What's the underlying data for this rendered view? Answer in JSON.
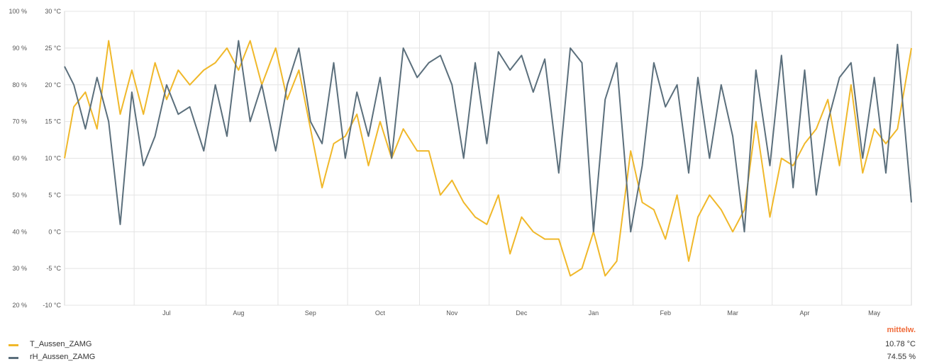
{
  "chart_data": {
    "type": "line",
    "title": "",
    "x_range": [
      "2023-06-01",
      "2024-05-31"
    ],
    "x_tick_labels": [
      "Jul",
      "Aug",
      "Sep",
      "Oct",
      "Nov",
      "Dec",
      "Jan",
      "Feb",
      "Mar",
      "Apr",
      "May"
    ],
    "y_left_ticks": [
      "100 %",
      "90 %",
      "80 %",
      "70 %",
      "60 %",
      "50 %",
      "40 %",
      "30 %",
      "20 %"
    ],
    "y_left_range": [
      20,
      100
    ],
    "y_right_ticks": [
      "30 °C",
      "25 °C",
      "20 °C",
      "15 °C",
      "10 °C",
      "5 °C",
      "0 °C",
      "-5 °C",
      "-10 °C"
    ],
    "y_temp_range": [
      -10,
      30
    ],
    "grid": true,
    "legend_position": "bottom-left",
    "avg_header": "mittelw.",
    "series": [
      {
        "name": "T_Aussen_ZAMG",
        "axis": "temperature",
        "color": "#f0b82a",
        "average": "10.78 °C",
        "x": [
          "2023-06-01",
          "2023-06-05",
          "2023-06-10",
          "2023-06-15",
          "2023-06-20",
          "2023-06-25",
          "2023-06-30",
          "2023-07-05",
          "2023-07-10",
          "2023-07-15",
          "2023-07-20",
          "2023-07-25",
          "2023-07-31",
          "2023-08-05",
          "2023-08-10",
          "2023-08-15",
          "2023-08-20",
          "2023-08-25",
          "2023-08-31",
          "2023-09-05",
          "2023-09-10",
          "2023-09-15",
          "2023-09-20",
          "2023-09-25",
          "2023-09-30",
          "2023-10-05",
          "2023-10-10",
          "2023-10-15",
          "2023-10-20",
          "2023-10-25",
          "2023-10-31",
          "2023-11-05",
          "2023-11-10",
          "2023-11-15",
          "2023-11-20",
          "2023-11-25",
          "2023-11-30",
          "2023-12-05",
          "2023-12-10",
          "2023-12-15",
          "2023-12-20",
          "2023-12-25",
          "2023-12-31",
          "2024-01-05",
          "2024-01-10",
          "2024-01-15",
          "2024-01-20",
          "2024-01-25",
          "2024-01-31",
          "2024-02-05",
          "2024-02-10",
          "2024-02-15",
          "2024-02-20",
          "2024-02-25",
          "2024-02-29",
          "2024-03-05",
          "2024-03-10",
          "2024-03-15",
          "2024-03-20",
          "2024-03-25",
          "2024-03-31",
          "2024-04-05",
          "2024-04-10",
          "2024-04-15",
          "2024-04-20",
          "2024-04-25",
          "2024-04-30",
          "2024-05-05",
          "2024-05-10",
          "2024-05-15",
          "2024-05-20",
          "2024-05-25",
          "2024-05-31"
        ],
        "y": [
          10,
          17,
          19,
          14,
          26,
          16,
          22,
          16,
          23,
          18,
          22,
          20,
          22,
          23,
          25,
          22,
          26,
          20,
          25,
          18,
          22,
          14,
          6,
          12,
          13,
          16,
          9,
          15,
          10,
          14,
          11,
          11,
          5,
          7,
          4,
          2,
          1,
          5,
          -3,
          2,
          0,
          -1,
          -1,
          -6,
          -5,
          0,
          -6,
          -4,
          11,
          4,
          3,
          -1,
          5,
          -4,
          2,
          5,
          3,
          0,
          3,
          15,
          2,
          10,
          9,
          12,
          14,
          18,
          9,
          20,
          8,
          14,
          12,
          14,
          25
        ]
      },
      {
        "name": "rH_Aussen_ZAMG",
        "axis": "humidity",
        "color": "#5b6f7c",
        "average": "74.55 %",
        "x": [
          "2023-06-01",
          "2023-06-05",
          "2023-06-10",
          "2023-06-15",
          "2023-06-20",
          "2023-06-25",
          "2023-06-30",
          "2023-07-05",
          "2023-07-10",
          "2023-07-15",
          "2023-07-20",
          "2023-07-25",
          "2023-07-31",
          "2023-08-05",
          "2023-08-10",
          "2023-08-15",
          "2023-08-20",
          "2023-08-25",
          "2023-08-31",
          "2023-09-05",
          "2023-09-10",
          "2023-09-15",
          "2023-09-20",
          "2023-09-25",
          "2023-09-30",
          "2023-10-05",
          "2023-10-10",
          "2023-10-15",
          "2023-10-20",
          "2023-10-25",
          "2023-10-31",
          "2023-11-05",
          "2023-11-10",
          "2023-11-15",
          "2023-11-20",
          "2023-11-25",
          "2023-11-30",
          "2023-12-05",
          "2023-12-10",
          "2023-12-15",
          "2023-12-20",
          "2023-12-25",
          "2023-12-31",
          "2024-01-05",
          "2024-01-10",
          "2024-01-15",
          "2024-01-20",
          "2024-01-25",
          "2024-01-31",
          "2024-02-05",
          "2024-02-10",
          "2024-02-15",
          "2024-02-20",
          "2024-02-25",
          "2024-02-29",
          "2024-03-05",
          "2024-03-10",
          "2024-03-15",
          "2024-03-20",
          "2024-03-25",
          "2024-03-31",
          "2024-04-05",
          "2024-04-10",
          "2024-04-15",
          "2024-04-20",
          "2024-04-25",
          "2024-04-30",
          "2024-05-05",
          "2024-05-10",
          "2024-05-15",
          "2024-05-20",
          "2024-05-25",
          "2024-05-31"
        ],
        "y": [
          85,
          80,
          68,
          82,
          70,
          42,
          78,
          58,
          66,
          80,
          72,
          74,
          62,
          80,
          66,
          92,
          70,
          80,
          62,
          80,
          90,
          70,
          64,
          86,
          60,
          78,
          66,
          82,
          60,
          90,
          82,
          86,
          88,
          80,
          60,
          86,
          64,
          89,
          84,
          88,
          78,
          87,
          56,
          90,
          86,
          40,
          76,
          86,
          40,
          58,
          86,
          74,
          80,
          56,
          82,
          60,
          80,
          66,
          40,
          84,
          58,
          88,
          52,
          84,
          50,
          70,
          82,
          86,
          60,
          82,
          56,
          91,
          48
        ]
      }
    ]
  }
}
